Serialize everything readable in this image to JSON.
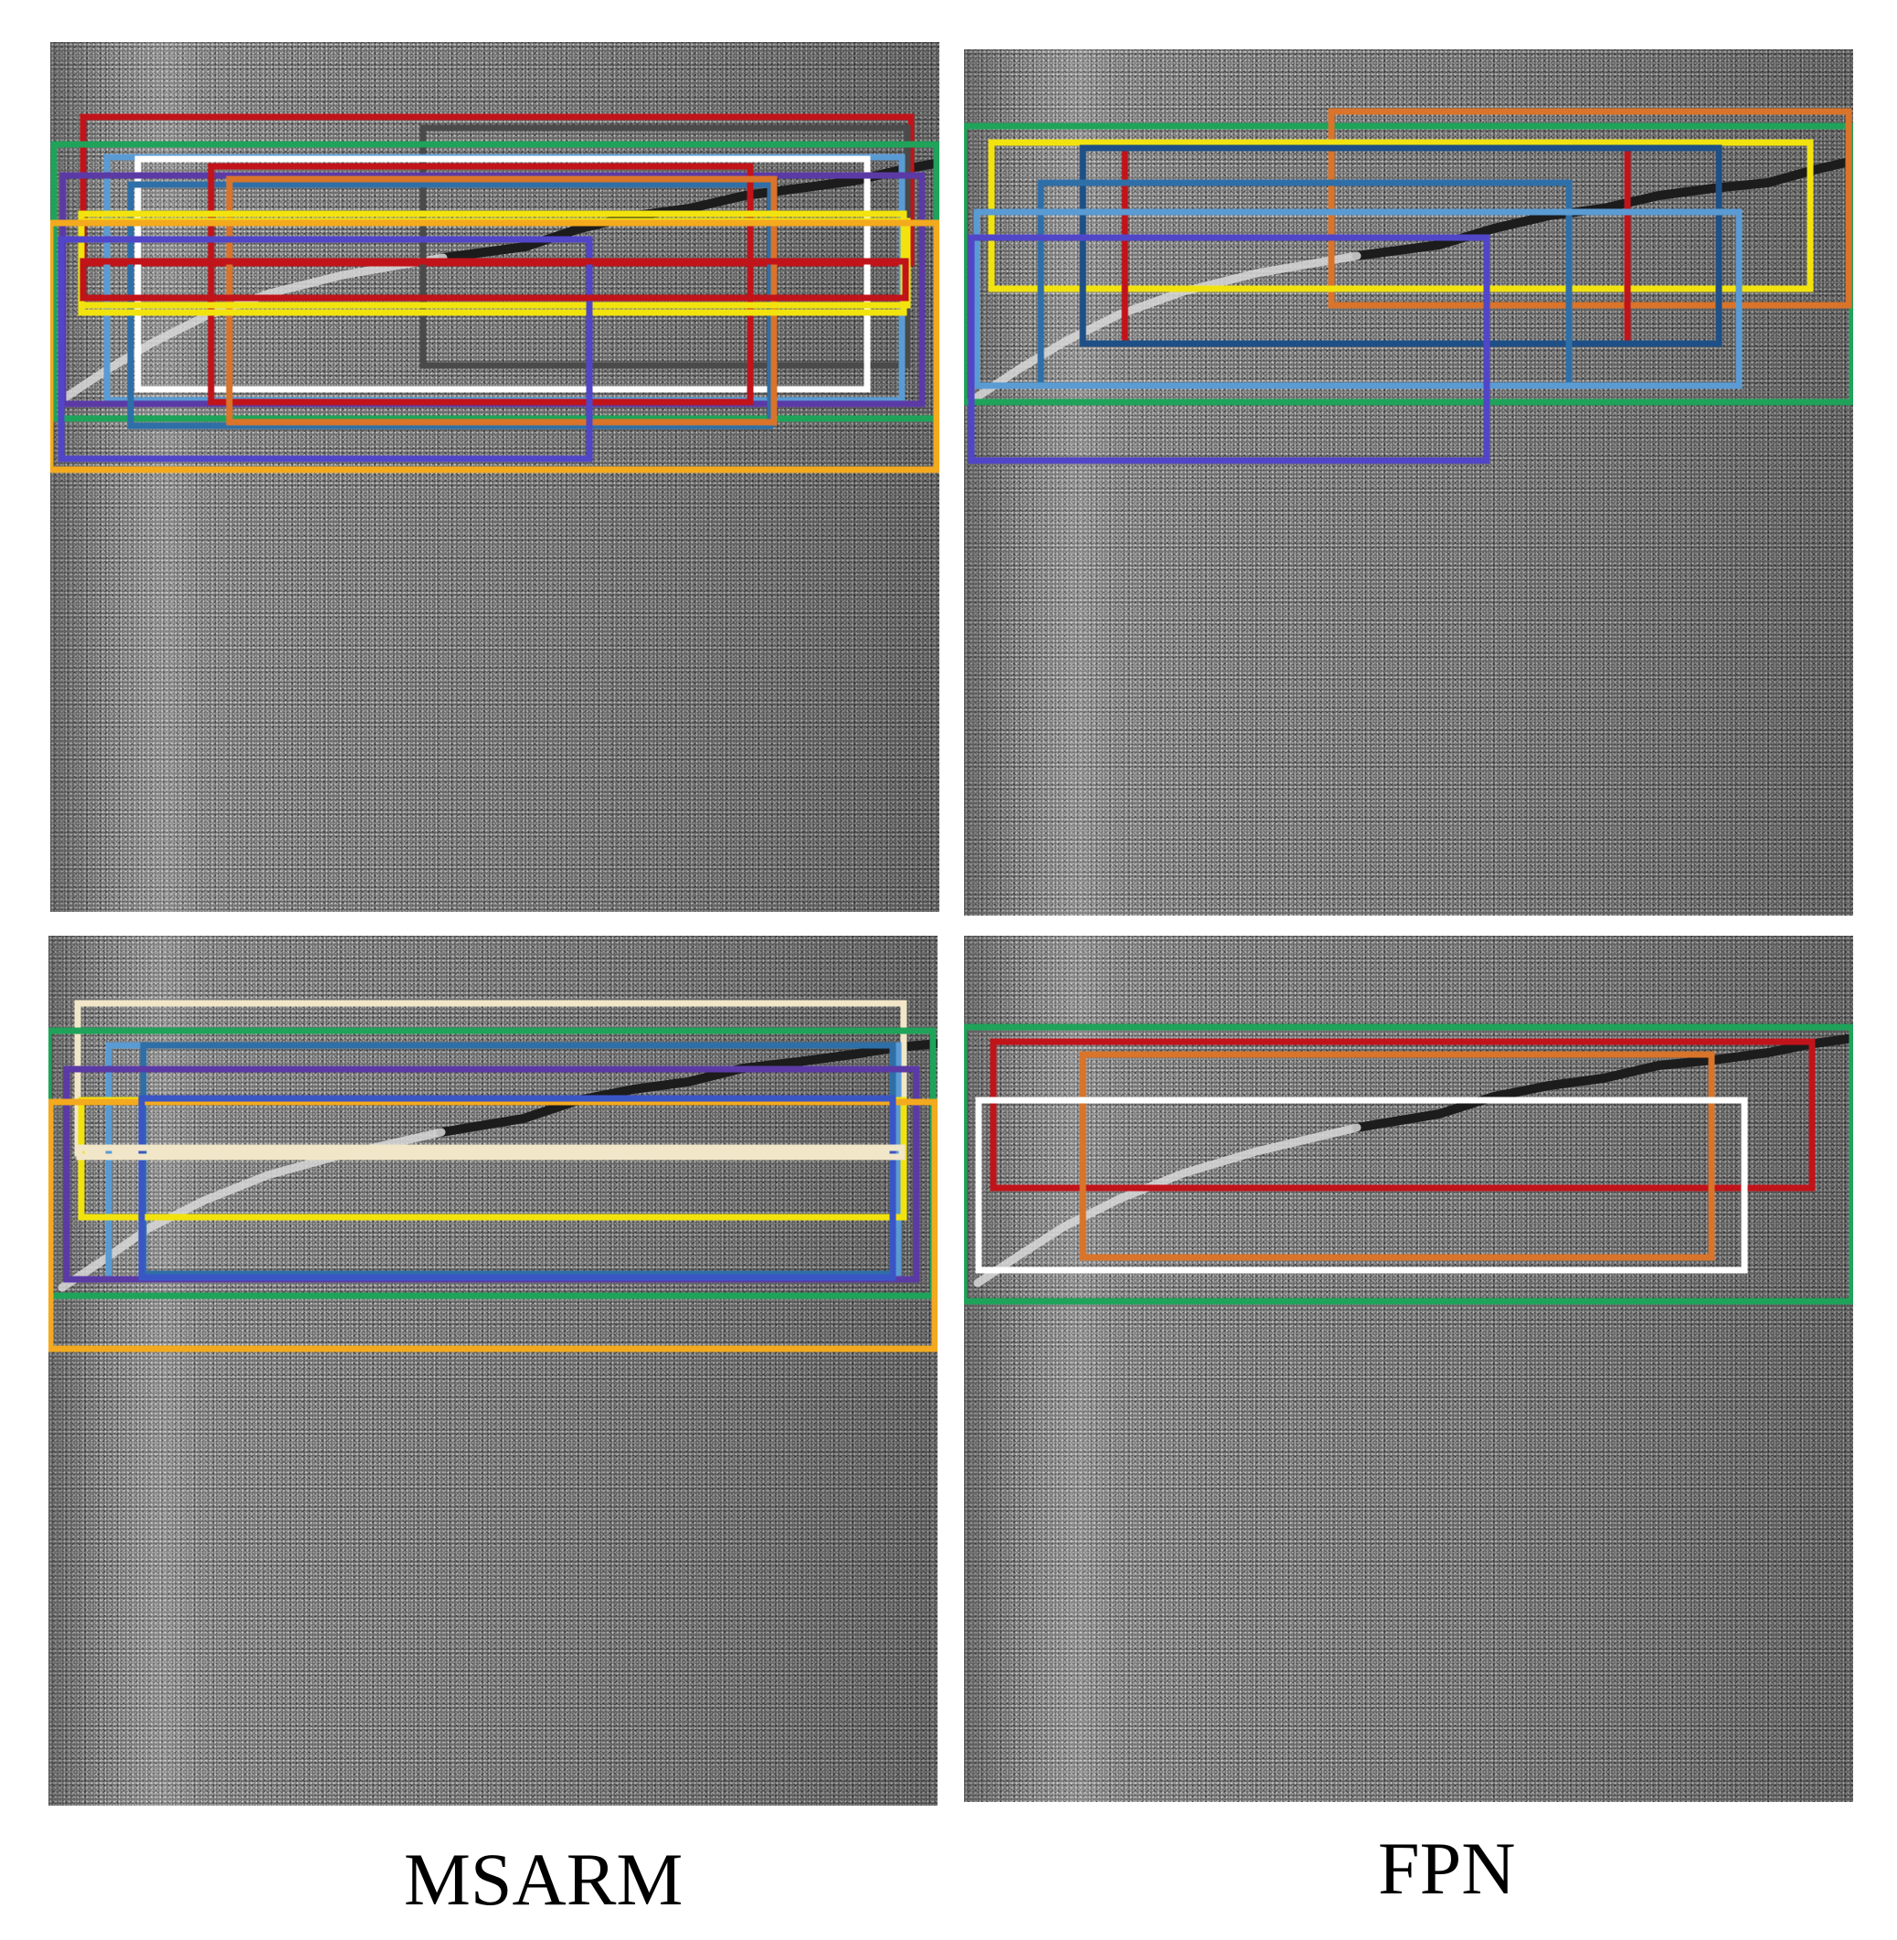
{
  "captions": {
    "left": "MSARM",
    "right": "FPN"
  },
  "colors": {
    "green": "#1fa35a",
    "red": "#c0141a",
    "darkgray": "#4a4a4a",
    "white": "#ffffff",
    "cream": "#f1e6c7",
    "yellow": "#f2e30f",
    "orange": "#f4aa1e",
    "brownorange": "#d9742a",
    "lightblue": "#5a9bd4",
    "steelblue": "#2f6fa8",
    "navy": "#1e4f86",
    "purple": "#5b3aa6",
    "indigo": "#5146c8",
    "royalblue": "#3a56c4"
  },
  "panels": [
    {
      "id": "panel-tl",
      "boxes": [
        {
          "color": "red"
        },
        {
          "color": "darkgray"
        },
        {
          "color": "green"
        },
        {
          "color": "lightblue"
        },
        {
          "color": "white"
        },
        {
          "color": "purple"
        },
        {
          "color": "steelblue"
        },
        {
          "color": "red"
        },
        {
          "color": "brownorange"
        },
        {
          "color": "yellow"
        },
        {
          "color": "yellow"
        },
        {
          "color": "orange"
        },
        {
          "color": "indigo"
        },
        {
          "color": "red"
        }
      ]
    },
    {
      "id": "panel-tr",
      "boxes": [
        {
          "color": "green"
        },
        {
          "color": "brownorange"
        },
        {
          "color": "yellow"
        },
        {
          "color": "red"
        },
        {
          "color": "navy"
        },
        {
          "color": "steelblue"
        },
        {
          "color": "lightblue"
        },
        {
          "color": "indigo"
        }
      ]
    },
    {
      "id": "panel-bl",
      "boxes": [
        {
          "color": "cream"
        },
        {
          "color": "green"
        },
        {
          "color": "lightblue"
        },
        {
          "color": "steelblue"
        },
        {
          "color": "purple"
        },
        {
          "color": "yellow"
        },
        {
          "color": "orange"
        },
        {
          "color": "royalblue"
        },
        {
          "color": "cream"
        }
      ]
    },
    {
      "id": "panel-br",
      "boxes": [
        {
          "color": "green"
        },
        {
          "color": "red"
        },
        {
          "color": "brownorange"
        },
        {
          "color": "white"
        }
      ]
    }
  ]
}
